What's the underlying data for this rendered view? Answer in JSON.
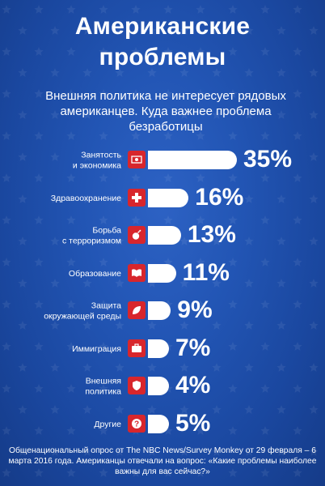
{
  "header": {
    "title_line1": "Американские",
    "title_line2": "проблемы",
    "subtitle": "Внешняя политика не интересует рядовых американцев. Куда важнее проблема безработицы"
  },
  "colors": {
    "background": "#1b4aa3",
    "accent": "#d8262c",
    "bar": "#ffffff"
  },
  "chart_data": {
    "type": "bar",
    "title": "Американские проблемы",
    "categories": [
      "Занятость и экономика",
      "Здравоохранение",
      "Борьба с терроризмом",
      "Образование",
      "Защита окружающей среды",
      "Иммиграция",
      "Внешняя политика",
      "Другие"
    ],
    "label_lines": [
      [
        "Занятость",
        "и экономика"
      ],
      [
        "Здравоохранение"
      ],
      [
        "Борьба",
        "с терроризмом"
      ],
      [
        "Образование"
      ],
      [
        "Защита",
        "окружающей среды"
      ],
      [
        "Иммиграция"
      ],
      [
        "Внешняя",
        "политика"
      ],
      [
        "Другие"
      ]
    ],
    "values": [
      35,
      16,
      13,
      11,
      9,
      7,
      4,
      5
    ],
    "value_labels": [
      "35%",
      "16%",
      "13%",
      "11%",
      "9%",
      "7%",
      "4%",
      "5%"
    ],
    "icons": [
      "money-icon",
      "medical-cross-icon",
      "bomb-icon",
      "book-icon",
      "leaf-icon",
      "briefcase-icon",
      "shield-icon",
      "question-icon"
    ],
    "unit": "%",
    "xlim": [
      0,
      35
    ]
  },
  "footnote": "Общенациональный опрос от The NBC News/Survey Monkey от 29 февраля – 6 марта 2016 года. Американцы отвечали на вопрос: «Какие проблемы наиболее важны для вас сейчас?»"
}
